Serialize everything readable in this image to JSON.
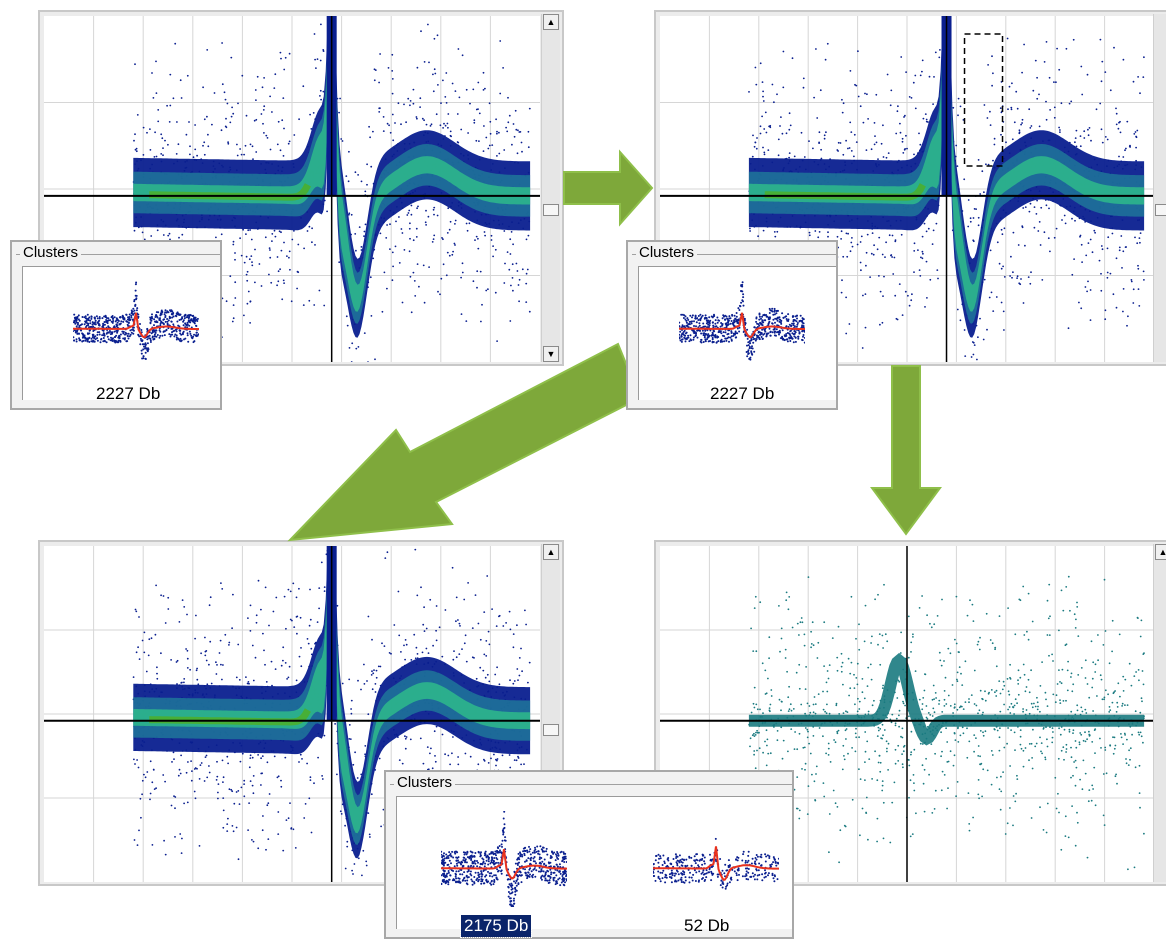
{
  "panels": {
    "top_left": {
      "clusters_title": "Clusters",
      "items": [
        {
          "label": "2227 Db",
          "selected": false
        }
      ]
    },
    "top_right": {
      "clusters_title": "Clusters",
      "items": [
        {
          "label": "2227 Db",
          "selected": false
        }
      ]
    },
    "bottom": {
      "clusters_title": "Clusters",
      "items": [
        {
          "label": "2175 Db",
          "selected": true
        },
        {
          "label": "52 Db",
          "selected": false
        }
      ]
    }
  },
  "scrollbar": {
    "up_glyph": "▲",
    "down_glyph": "▼"
  },
  "colors": {
    "density_low": "#0a1f8f",
    "density_mid": "#1f7a9a",
    "density_high": "#2fbf8a",
    "density_peak": "#4caf28",
    "isolated_cluster": "#1a7a80",
    "mean_waveform": "#e8321e",
    "arrow_fill": "#7ea83a",
    "arrow_stroke": "#8fbf4a",
    "selection_bg": "#0a246a"
  },
  "icons": {
    "arrow": "arrow-right-icon",
    "up": "scroll-up-icon",
    "down": "scroll-down-icon"
  }
}
